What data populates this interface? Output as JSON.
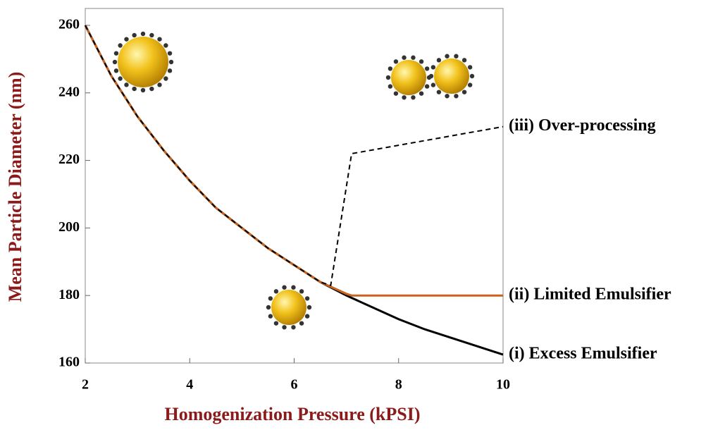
{
  "chart_data": {
    "type": "line",
    "x_label": "Homogenization Pressure (kPSI)",
    "y_label": "Mean Particle Diameter (nm)",
    "xlim": [
      2,
      10
    ],
    "xticks": [
      2,
      4,
      6,
      8,
      10
    ],
    "ylim": [
      160,
      265
    ],
    "yticks": [
      160,
      180,
      200,
      220,
      240,
      260
    ],
    "series": [
      {
        "name": "(i) Excess Emulsifier",
        "color": "#000000",
        "style": "solid",
        "x": [
          2,
          2.5,
          3,
          3.5,
          4,
          4.5,
          5,
          5.5,
          6,
          6.5,
          7,
          7.5,
          8,
          8.5,
          9,
          9.5,
          10
        ],
        "values": [
          260,
          245,
          233,
          223,
          214,
          206,
          200,
          194,
          189,
          184,
          180,
          176.5,
          173,
          170,
          167.5,
          165,
          162.5
        ]
      },
      {
        "name": "(ii) Limited Emulsifier",
        "color": "#c8641e",
        "style": "solid",
        "x": [
          2,
          2.5,
          3,
          3.5,
          4,
          4.5,
          5,
          5.5,
          6,
          6.5,
          7,
          7.1,
          10
        ],
        "values": [
          260,
          245,
          233,
          223,
          214,
          206,
          200,
          194,
          189,
          184,
          180.5,
          180,
          180
        ]
      },
      {
        "name": "(iii) Over-processing",
        "color": "#000000",
        "style": "dashed",
        "x": [
          2,
          2.5,
          3,
          3.5,
          4,
          4.5,
          5,
          5.5,
          6,
          6.5,
          6.7,
          7.1,
          10
        ],
        "values": [
          260,
          245,
          233,
          223,
          214,
          206,
          200,
          194,
          189,
          184,
          183,
          222,
          230
        ]
      }
    ]
  }
}
